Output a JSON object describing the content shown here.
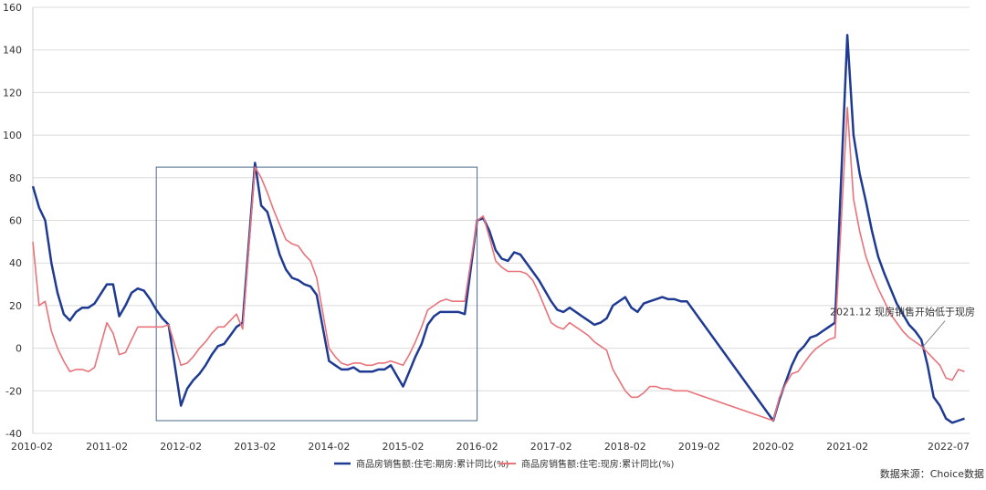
{
  "chart_data": {
    "type": "line",
    "title": "",
    "xlabel": "",
    "ylabel": "",
    "ylim": [
      -40,
      160
    ],
    "yticks": [
      -40,
      -20,
      0,
      20,
      40,
      60,
      80,
      100,
      120,
      140,
      160
    ],
    "xlim": [
      "2010-02",
      "2022-07"
    ],
    "xticks": [
      "2010-02",
      "2011-02",
      "2012-02",
      "2013-02",
      "2014-02",
      "2015-02",
      "2016-02",
      "2017-02",
      "2018-02",
      "2019-02",
      "2020-02",
      "2021-02",
      "2022-07"
    ],
    "grid": "horizontal",
    "legend_position": "bottom",
    "series": [
      {
        "name": "商品房销售额:住宅:期房:累计同比(%)",
        "color": "#1f3a93",
        "points": [
          [
            "2010-02",
            76
          ],
          [
            "2010-03",
            66
          ],
          [
            "2010-04",
            60
          ],
          [
            "2010-05",
            40
          ],
          [
            "2010-06",
            26
          ],
          [
            "2010-07",
            16
          ],
          [
            "2010-08",
            13
          ],
          [
            "2010-09",
            17
          ],
          [
            "2010-10",
            19
          ],
          [
            "2010-11",
            19
          ],
          [
            "2010-12",
            21
          ],
          [
            "2011-02",
            30
          ],
          [
            "2011-03",
            30
          ],
          [
            "2011-04",
            15
          ],
          [
            "2011-05",
            20
          ],
          [
            "2011-06",
            26
          ],
          [
            "2011-07",
            28
          ],
          [
            "2011-08",
            27
          ],
          [
            "2011-09",
            23
          ],
          [
            "2011-10",
            18
          ],
          [
            "2011-11",
            14
          ],
          [
            "2011-12",
            11
          ],
          [
            "2012-02",
            -27
          ],
          [
            "2012-03",
            -19
          ],
          [
            "2012-04",
            -15
          ],
          [
            "2012-05",
            -12
          ],
          [
            "2012-06",
            -8
          ],
          [
            "2012-07",
            -3
          ],
          [
            "2012-08",
            1
          ],
          [
            "2012-09",
            2
          ],
          [
            "2012-10",
            6
          ],
          [
            "2012-11",
            10
          ],
          [
            "2012-12",
            12
          ],
          [
            "2013-02",
            87
          ],
          [
            "2013-03",
            67
          ],
          [
            "2013-04",
            64
          ],
          [
            "2013-05",
            54
          ],
          [
            "2013-06",
            44
          ],
          [
            "2013-07",
            37
          ],
          [
            "2013-08",
            33
          ],
          [
            "2013-09",
            32
          ],
          [
            "2013-10",
            30
          ],
          [
            "2013-11",
            29
          ],
          [
            "2013-12",
            25
          ],
          [
            "2014-02",
            -6
          ],
          [
            "2014-03",
            -8
          ],
          [
            "2014-04",
            -10
          ],
          [
            "2014-05",
            -10
          ],
          [
            "2014-06",
            -9
          ],
          [
            "2014-07",
            -11
          ],
          [
            "2014-08",
            -11
          ],
          [
            "2014-09",
            -11
          ],
          [
            "2014-10",
            -10
          ],
          [
            "2014-11",
            -10
          ],
          [
            "2014-12",
            -8
          ],
          [
            "2015-02",
            -18
          ],
          [
            "2015-03",
            -11
          ],
          [
            "2015-04",
            -4
          ],
          [
            "2015-05",
            2
          ],
          [
            "2015-06",
            11
          ],
          [
            "2015-07",
            15
          ],
          [
            "2015-08",
            17
          ],
          [
            "2015-09",
            17
          ],
          [
            "2015-10",
            17
          ],
          [
            "2015-11",
            17
          ],
          [
            "2015-12",
            16
          ],
          [
            "2016-02",
            60
          ],
          [
            "2016-03",
            61
          ],
          [
            "2016-04",
            55
          ],
          [
            "2016-05",
            46
          ],
          [
            "2016-06",
            42
          ],
          [
            "2016-07",
            41
          ],
          [
            "2016-08",
            45
          ],
          [
            "2016-09",
            44
          ],
          [
            "2016-10",
            40
          ],
          [
            "2016-11",
            36
          ],
          [
            "2016-12",
            32
          ],
          [
            "2017-02",
            22
          ],
          [
            "2017-03",
            18
          ],
          [
            "2017-04",
            17
          ],
          [
            "2017-05",
            19
          ],
          [
            "2017-06",
            17
          ],
          [
            "2017-07",
            15
          ],
          [
            "2017-08",
            13
          ],
          [
            "2017-09",
            11
          ],
          [
            "2017-10",
            12
          ],
          [
            "2017-11",
            14
          ],
          [
            "2017-12",
            20
          ],
          [
            "2018-02",
            24
          ],
          [
            "2018-03",
            19
          ],
          [
            "2018-04",
            17
          ],
          [
            "2018-05",
            21
          ],
          [
            "2018-06",
            22
          ],
          [
            "2018-07",
            23
          ],
          [
            "2018-08",
            24
          ],
          [
            "2018-09",
            23
          ],
          [
            "2018-10",
            23
          ],
          [
            "2018-11",
            22
          ],
          [
            "2018-12",
            22
          ],
          [
            "2020-02",
            -34
          ],
          [
            "2020-03",
            -24
          ],
          [
            "2020-04",
            -16
          ],
          [
            "2020-05",
            -8
          ],
          [
            "2020-06",
            -2
          ],
          [
            "2020-07",
            1
          ],
          [
            "2020-08",
            5
          ],
          [
            "2020-09",
            6
          ],
          [
            "2020-10",
            8
          ],
          [
            "2020-11",
            10
          ],
          [
            "2020-12",
            12
          ],
          [
            "2021-02",
            147
          ],
          [
            "2021-03",
            100
          ],
          [
            "2021-04",
            82
          ],
          [
            "2021-05",
            69
          ],
          [
            "2021-06",
            55
          ],
          [
            "2021-07",
            43
          ],
          [
            "2021-08",
            35
          ],
          [
            "2021-09",
            28
          ],
          [
            "2021-10",
            21
          ],
          [
            "2021-11",
            16
          ],
          [
            "2021-12",
            11
          ],
          [
            "2022-01",
            8
          ],
          [
            "2022-02",
            4
          ],
          [
            "2022-03",
            -8
          ],
          [
            "2022-04",
            -23
          ],
          [
            "2022-05",
            -27
          ],
          [
            "2022-06",
            -33
          ],
          [
            "2022-07",
            -35
          ],
          [
            "2022-08",
            -34
          ],
          [
            "2022-09",
            -33
          ]
        ]
      },
      {
        "name": "商品房销售额:住宅:现房:累计同比(%)",
        "color": "#e8737a",
        "points": [
          [
            "2010-02",
            50
          ],
          [
            "2010-03",
            20
          ],
          [
            "2010-04",
            22
          ],
          [
            "2010-05",
            8
          ],
          [
            "2010-06",
            0
          ],
          [
            "2010-07",
            -6
          ],
          [
            "2010-08",
            -11
          ],
          [
            "2010-09",
            -10
          ],
          [
            "2010-10",
            -10
          ],
          [
            "2010-11",
            -11
          ],
          [
            "2010-12",
            -9
          ],
          [
            "2011-02",
            12
          ],
          [
            "2011-03",
            7
          ],
          [
            "2011-04",
            -3
          ],
          [
            "2011-05",
            -2
          ],
          [
            "2011-06",
            4
          ],
          [
            "2011-07",
            10
          ],
          [
            "2011-08",
            10
          ],
          [
            "2011-09",
            10
          ],
          [
            "2011-10",
            10
          ],
          [
            "2011-11",
            10
          ],
          [
            "2011-12",
            11
          ],
          [
            "2012-02",
            -8
          ],
          [
            "2012-03",
            -7
          ],
          [
            "2012-04",
            -4
          ],
          [
            "2012-05",
            0
          ],
          [
            "2012-06",
            3
          ],
          [
            "2012-07",
            7
          ],
          [
            "2012-08",
            10
          ],
          [
            "2012-09",
            10
          ],
          [
            "2012-10",
            13
          ],
          [
            "2012-11",
            16
          ],
          [
            "2012-12",
            9
          ],
          [
            "2013-02",
            85
          ],
          [
            "2013-03",
            80
          ],
          [
            "2013-04",
            73
          ],
          [
            "2013-05",
            65
          ],
          [
            "2013-06",
            58
          ],
          [
            "2013-07",
            51
          ],
          [
            "2013-08",
            49
          ],
          [
            "2013-09",
            48
          ],
          [
            "2013-10",
            44
          ],
          [
            "2013-11",
            41
          ],
          [
            "2013-12",
            33
          ],
          [
            "2014-02",
            0
          ],
          [
            "2014-03",
            -4
          ],
          [
            "2014-04",
            -7
          ],
          [
            "2014-05",
            -8
          ],
          [
            "2014-06",
            -7
          ],
          [
            "2014-07",
            -7
          ],
          [
            "2014-08",
            -8
          ],
          [
            "2014-09",
            -8
          ],
          [
            "2014-10",
            -7
          ],
          [
            "2014-11",
            -7
          ],
          [
            "2014-12",
            -6
          ],
          [
            "2015-02",
            -8
          ],
          [
            "2015-03",
            -3
          ],
          [
            "2015-04",
            3
          ],
          [
            "2015-05",
            10
          ],
          [
            "2015-06",
            18
          ],
          [
            "2015-07",
            20
          ],
          [
            "2015-08",
            22
          ],
          [
            "2015-09",
            23
          ],
          [
            "2015-10",
            22
          ],
          [
            "2015-11",
            22
          ],
          [
            "2015-12",
            22
          ],
          [
            "2016-02",
            60
          ],
          [
            "2016-03",
            62
          ],
          [
            "2016-04",
            52
          ],
          [
            "2016-05",
            41
          ],
          [
            "2016-06",
            38
          ],
          [
            "2016-07",
            36
          ],
          [
            "2016-08",
            36
          ],
          [
            "2016-09",
            36
          ],
          [
            "2016-10",
            35
          ],
          [
            "2016-11",
            32
          ],
          [
            "2016-12",
            26
          ],
          [
            "2017-02",
            12
          ],
          [
            "2017-03",
            10
          ],
          [
            "2017-04",
            9
          ],
          [
            "2017-05",
            12
          ],
          [
            "2017-06",
            10
          ],
          [
            "2017-07",
            8
          ],
          [
            "2017-08",
            6
          ],
          [
            "2017-09",
            3
          ],
          [
            "2017-10",
            1
          ],
          [
            "2017-11",
            -1
          ],
          [
            "2017-12",
            -10
          ],
          [
            "2018-02",
            -20
          ],
          [
            "2018-03",
            -23
          ],
          [
            "2018-04",
            -23
          ],
          [
            "2018-05",
            -21
          ],
          [
            "2018-06",
            -18
          ],
          [
            "2018-07",
            -18
          ],
          [
            "2018-08",
            -19
          ],
          [
            "2018-09",
            -19
          ],
          [
            "2018-10",
            -20
          ],
          [
            "2018-11",
            -20
          ],
          [
            "2018-12",
            -20
          ],
          [
            "2020-02",
            -34
          ],
          [
            "2020-03",
            -23
          ],
          [
            "2020-04",
            -17
          ],
          [
            "2020-05",
            -12
          ],
          [
            "2020-06",
            -11
          ],
          [
            "2020-07",
            -7
          ],
          [
            "2020-08",
            -3
          ],
          [
            "2020-09",
            0
          ],
          [
            "2020-10",
            2
          ],
          [
            "2020-11",
            4
          ],
          [
            "2020-12",
            5
          ],
          [
            "2021-02",
            113
          ],
          [
            "2021-03",
            70
          ],
          [
            "2021-04",
            55
          ],
          [
            "2021-05",
            43
          ],
          [
            "2021-06",
            35
          ],
          [
            "2021-07",
            28
          ],
          [
            "2021-08",
            22
          ],
          [
            "2021-09",
            16
          ],
          [
            "2021-10",
            12
          ],
          [
            "2021-11",
            8
          ],
          [
            "2021-12",
            5
          ],
          [
            "2022-01",
            3
          ],
          [
            "2022-02",
            1
          ],
          [
            "2022-03",
            -2
          ],
          [
            "2022-04",
            -5
          ],
          [
            "2022-05",
            -8
          ],
          [
            "2022-06",
            -14
          ],
          [
            "2022-07",
            -15
          ],
          [
            "2022-08",
            -10
          ],
          [
            "2022-09",
            -11
          ]
        ]
      }
    ],
    "highlight_box": {
      "x_start": "2011-10",
      "x_end": "2016-02",
      "y_top": 85,
      "y_bottom": -34
    },
    "annotation": {
      "text": "2021.12 现房销售开始低于现房",
      "x": "2022-02",
      "y": 0
    }
  },
  "source_text": "数据来源：Choice数据"
}
